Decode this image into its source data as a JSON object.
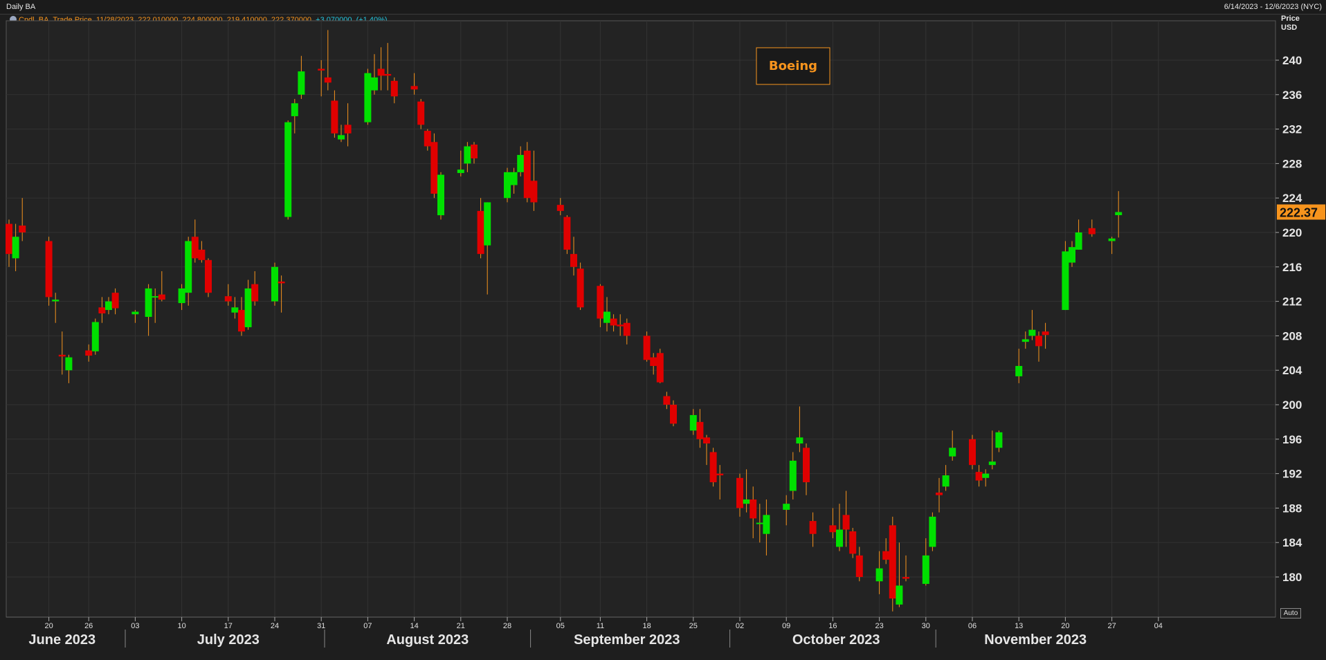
{
  "header": {
    "title": "Daily BA",
    "date_range": "6/14/2023 - 12/6/2023 (NYC)"
  },
  "legend": {
    "series": "Cndl, BA, Trade Price,",
    "date": "11/28/2023,",
    "ohlc": "222.010000, 224.800000, 219.410000, 222.370000,",
    "change": "+3.070000, (+1.40%)"
  },
  "axis_title": {
    "line1": "Price",
    "line2": "USD"
  },
  "auto_label": "Auto",
  "colors": {
    "background": "#1e1e1e",
    "up": "#00e000",
    "down": "#e00000",
    "accent": "#f7941d",
    "grid": "#333333"
  },
  "chart_data": {
    "type": "candlestick",
    "title": "Boeing",
    "last_price_label": "222.37",
    "last_price": 222.37,
    "y_ticks": [
      180,
      184,
      188,
      192,
      196,
      200,
      204,
      208,
      212,
      216,
      220,
      224,
      228,
      232,
      236,
      240
    ],
    "ylim": [
      176,
      244
    ],
    "grid": true,
    "x_day_ticks": [
      {
        "date": "2023-06-20",
        "label": "20"
      },
      {
        "date": "2023-06-26",
        "label": "26"
      },
      {
        "date": "2023-07-03",
        "label": "03"
      },
      {
        "date": "2023-07-10",
        "label": "10"
      },
      {
        "date": "2023-07-17",
        "label": "17"
      },
      {
        "date": "2023-07-24",
        "label": "24"
      },
      {
        "date": "2023-07-31",
        "label": "31"
      },
      {
        "date": "2023-08-07",
        "label": "07"
      },
      {
        "date": "2023-08-14",
        "label": "14"
      },
      {
        "date": "2023-08-21",
        "label": "21"
      },
      {
        "date": "2023-08-28",
        "label": "28"
      },
      {
        "date": "2023-09-05",
        "label": "05"
      },
      {
        "date": "2023-09-11",
        "label": "11"
      },
      {
        "date": "2023-09-18",
        "label": "18"
      },
      {
        "date": "2023-09-25",
        "label": "25"
      },
      {
        "date": "2023-10-02",
        "label": "02"
      },
      {
        "date": "2023-10-09",
        "label": "09"
      },
      {
        "date": "2023-10-16",
        "label": "16"
      },
      {
        "date": "2023-10-23",
        "label": "23"
      },
      {
        "date": "2023-10-30",
        "label": "30"
      },
      {
        "date": "2023-11-06",
        "label": "06"
      },
      {
        "date": "2023-11-13",
        "label": "13"
      },
      {
        "date": "2023-11-20",
        "label": "20"
      },
      {
        "date": "2023-11-27",
        "label": "27"
      },
      {
        "date": "2023-12-04",
        "label": "04"
      }
    ],
    "x_months": [
      {
        "label": "June 2023",
        "start": "2023-06-14",
        "end": "2023-06-30"
      },
      {
        "label": "July 2023",
        "start": "2023-07-03",
        "end": "2023-07-31"
      },
      {
        "label": "August 2023",
        "start": "2023-08-01",
        "end": "2023-08-31"
      },
      {
        "label": "September 2023",
        "start": "2023-09-01",
        "end": "2023-09-29"
      },
      {
        "label": "October 2023",
        "start": "2023-10-02",
        "end": "2023-10-31"
      },
      {
        "label": "November 2023",
        "start": "2023-11-01",
        "end": "2023-11-30"
      }
    ],
    "candles": [
      {
        "date": "2023-06-14",
        "o": 221.0,
        "h": 221.5,
        "l": 216.0,
        "c": 217.5
      },
      {
        "date": "2023-06-15",
        "o": 217.0,
        "h": 221.0,
        "l": 215.5,
        "c": 219.5
      },
      {
        "date": "2023-06-16",
        "o": 220.8,
        "h": 224.0,
        "l": 219.0,
        "c": 220.0
      },
      {
        "date": "2023-06-20",
        "o": 219.0,
        "h": 219.5,
        "l": 211.5,
        "c": 212.5
      },
      {
        "date": "2023-06-21",
        "o": 212.0,
        "h": 213.0,
        "l": 209.5,
        "c": 212.2
      },
      {
        "date": "2023-06-22",
        "o": 205.8,
        "h": 208.5,
        "l": 203.5,
        "c": 205.6
      },
      {
        "date": "2023-06-23",
        "o": 204.0,
        "h": 205.8,
        "l": 202.5,
        "c": 205.5
      },
      {
        "date": "2023-06-26",
        "o": 206.3,
        "h": 207.0,
        "l": 205.0,
        "c": 205.7
      },
      {
        "date": "2023-06-27",
        "o": 206.2,
        "h": 210.0,
        "l": 205.8,
        "c": 209.6
      },
      {
        "date": "2023-06-28",
        "o": 211.3,
        "h": 212.5,
        "l": 209.5,
        "c": 210.6
      },
      {
        "date": "2023-06-29",
        "o": 211.0,
        "h": 212.5,
        "l": 210.5,
        "c": 212.0
      },
      {
        "date": "2023-06-30",
        "o": 213.0,
        "h": 213.5,
        "l": 210.5,
        "c": 211.2
      },
      {
        "date": "2023-07-03",
        "o": 210.5,
        "h": 211.0,
        "l": 209.5,
        "c": 210.8
      },
      {
        "date": "2023-07-05",
        "o": 210.2,
        "h": 214.0,
        "l": 208.0,
        "c": 213.5
      },
      {
        "date": "2023-07-06",
        "o": 212.5,
        "h": 213.5,
        "l": 209.5,
        "c": 212.6
      },
      {
        "date": "2023-07-07",
        "o": 212.8,
        "h": 215.5,
        "l": 212.0,
        "c": 212.2
      },
      {
        "date": "2023-07-10",
        "o": 211.8,
        "h": 214.0,
        "l": 211.0,
        "c": 213.5
      },
      {
        "date": "2023-07-11",
        "o": 213.0,
        "h": 219.5,
        "l": 211.5,
        "c": 219.0
      },
      {
        "date": "2023-07-12",
        "o": 219.5,
        "h": 221.5,
        "l": 216.5,
        "c": 217.0
      },
      {
        "date": "2023-07-13",
        "o": 218.0,
        "h": 219.0,
        "l": 216.5,
        "c": 216.8
      },
      {
        "date": "2023-07-14",
        "o": 216.8,
        "h": 217.0,
        "l": 212.5,
        "c": 213.0
      },
      {
        "date": "2023-07-17",
        "o": 212.6,
        "h": 214.0,
        "l": 211.5,
        "c": 212.0
      },
      {
        "date": "2023-07-18",
        "o": 210.7,
        "h": 212.5,
        "l": 210.0,
        "c": 211.3
      },
      {
        "date": "2023-07-19",
        "o": 211.0,
        "h": 212.5,
        "l": 208.0,
        "c": 208.5
      },
      {
        "date": "2023-07-20",
        "o": 209.0,
        "h": 214.5,
        "l": 208.7,
        "c": 213.5
      },
      {
        "date": "2023-07-21",
        "o": 214.0,
        "h": 215.5,
        "l": 211.5,
        "c": 212.0
      },
      {
        "date": "2023-07-24",
        "o": 212.0,
        "h": 216.5,
        "l": 211.5,
        "c": 216.0
      },
      {
        "date": "2023-07-25",
        "o": 214.3,
        "h": 215.0,
        "l": 210.7,
        "c": 214.1
      },
      {
        "date": "2023-07-26",
        "o": 221.8,
        "h": 233.0,
        "l": 221.5,
        "c": 232.8
      },
      {
        "date": "2023-07-27",
        "o": 233.5,
        "h": 235.5,
        "l": 231.5,
        "c": 235.0
      },
      {
        "date": "2023-07-28",
        "o": 236.0,
        "h": 240.5,
        "l": 235.5,
        "c": 238.7
      },
      {
        "date": "2023-07-31",
        "o": 239.0,
        "h": 240.0,
        "l": 235.8,
        "c": 238.8
      },
      {
        "date": "2023-08-01",
        "o": 238.0,
        "h": 243.5,
        "l": 236.5,
        "c": 237.4
      },
      {
        "date": "2023-08-02",
        "o": 235.3,
        "h": 236.5,
        "l": 231.0,
        "c": 231.5
      },
      {
        "date": "2023-08-03",
        "o": 230.8,
        "h": 232.5,
        "l": 230.5,
        "c": 231.3
      },
      {
        "date": "2023-08-04",
        "o": 232.5,
        "h": 235.0,
        "l": 230.0,
        "c": 231.5
      },
      {
        "date": "2023-08-07",
        "o": 232.8,
        "h": 239.0,
        "l": 232.5,
        "c": 238.5
      },
      {
        "date": "2023-08-08",
        "o": 236.5,
        "h": 240.7,
        "l": 236.0,
        "c": 238.0
      },
      {
        "date": "2023-08-09",
        "o": 239.0,
        "h": 241.5,
        "l": 236.5,
        "c": 238.2
      },
      {
        "date": "2023-08-10",
        "o": 238.4,
        "h": 242.0,
        "l": 236.5,
        "c": 238.2
      },
      {
        "date": "2023-08-11",
        "o": 237.6,
        "h": 238.0,
        "l": 235.0,
        "c": 235.8
      },
      {
        "date": "2023-08-14",
        "o": 237.0,
        "h": 238.5,
        "l": 236.0,
        "c": 236.6
      },
      {
        "date": "2023-08-15",
        "o": 235.2,
        "h": 235.5,
        "l": 232.0,
        "c": 232.5
      },
      {
        "date": "2023-08-16",
        "o": 231.8,
        "h": 232.0,
        "l": 229.5,
        "c": 230.0
      },
      {
        "date": "2023-08-17",
        "o": 230.5,
        "h": 231.5,
        "l": 224.0,
        "c": 224.5
      },
      {
        "date": "2023-08-18",
        "o": 222.0,
        "h": 227.0,
        "l": 221.5,
        "c": 226.7
      },
      {
        "date": "2023-08-21",
        "o": 226.9,
        "h": 229.5,
        "l": 226.5,
        "c": 227.3
      },
      {
        "date": "2023-08-22",
        "o": 228.0,
        "h": 230.5,
        "l": 227.0,
        "c": 230.0
      },
      {
        "date": "2023-08-23",
        "o": 230.2,
        "h": 230.5,
        "l": 228.0,
        "c": 228.6
      },
      {
        "date": "2023-08-24",
        "o": 222.5,
        "h": 224.0,
        "l": 217.0,
        "c": 217.5
      },
      {
        "date": "2023-08-25",
        "o": 218.5,
        "h": 223.5,
        "l": 212.8,
        "c": 223.5
      },
      {
        "date": "2023-08-28",
        "o": 224.0,
        "h": 227.5,
        "l": 223.5,
        "c": 227.0
      },
      {
        "date": "2023-08-29",
        "o": 225.5,
        "h": 227.5,
        "l": 224.5,
        "c": 227.0
      },
      {
        "date": "2023-08-30",
        "o": 227.0,
        "h": 230.0,
        "l": 226.5,
        "c": 229.0
      },
      {
        "date": "2023-08-31",
        "o": 229.5,
        "h": 230.5,
        "l": 223.5,
        "c": 224.0
      },
      {
        "date": "2023-09-01",
        "o": 226.0,
        "h": 229.5,
        "l": 222.5,
        "c": 223.5
      },
      {
        "date": "2023-09-05",
        "o": 223.2,
        "h": 224.0,
        "l": 222.0,
        "c": 222.5
      },
      {
        "date": "2023-09-06",
        "o": 221.8,
        "h": 222.0,
        "l": 217.5,
        "c": 218.0
      },
      {
        "date": "2023-09-07",
        "o": 217.5,
        "h": 219.5,
        "l": 215.0,
        "c": 216.0
      },
      {
        "date": "2023-09-08",
        "o": 215.8,
        "h": 216.5,
        "l": 211.0,
        "c": 211.3
      },
      {
        "date": "2023-09-11",
        "o": 213.8,
        "h": 214.0,
        "l": 209.0,
        "c": 210.0
      },
      {
        "date": "2023-09-12",
        "o": 209.5,
        "h": 212.5,
        "l": 208.5,
        "c": 210.8
      },
      {
        "date": "2023-09-13",
        "o": 210.0,
        "h": 210.5,
        "l": 208.5,
        "c": 209.2
      },
      {
        "date": "2023-09-14",
        "o": 209.3,
        "h": 210.5,
        "l": 208.0,
        "c": 209.1
      },
      {
        "date": "2023-09-15",
        "o": 209.5,
        "h": 210.0,
        "l": 207.0,
        "c": 208.0
      },
      {
        "date": "2023-09-18",
        "o": 208.0,
        "h": 208.5,
        "l": 205.0,
        "c": 205.2
      },
      {
        "date": "2023-09-19",
        "o": 205.5,
        "h": 206.0,
        "l": 203.5,
        "c": 204.5
      },
      {
        "date": "2023-09-20",
        "o": 206.0,
        "h": 206.5,
        "l": 202.5,
        "c": 202.6
      },
      {
        "date": "2023-09-21",
        "o": 201.0,
        "h": 201.5,
        "l": 199.5,
        "c": 200.0
      },
      {
        "date": "2023-09-22",
        "o": 200.0,
        "h": 200.5,
        "l": 197.5,
        "c": 197.8
      },
      {
        "date": "2023-09-25",
        "o": 197.0,
        "h": 199.5,
        "l": 196.5,
        "c": 198.8
      },
      {
        "date": "2023-09-26",
        "o": 198.0,
        "h": 199.5,
        "l": 195.0,
        "c": 196.0
      },
      {
        "date": "2023-09-27",
        "o": 196.2,
        "h": 196.5,
        "l": 193.0,
        "c": 195.5
      },
      {
        "date": "2023-09-28",
        "o": 194.5,
        "h": 195.0,
        "l": 190.5,
        "c": 191.0
      },
      {
        "date": "2023-09-29",
        "o": 192.0,
        "h": 193.0,
        "l": 189.0,
        "c": 191.8
      },
      {
        "date": "2023-10-02",
        "o": 191.5,
        "h": 192.0,
        "l": 187.0,
        "c": 188.0
      },
      {
        "date": "2023-10-03",
        "o": 188.5,
        "h": 192.5,
        "l": 187.5,
        "c": 189.0
      },
      {
        "date": "2023-10-04",
        "o": 189.0,
        "h": 190.5,
        "l": 184.5,
        "c": 186.8
      },
      {
        "date": "2023-10-05",
        "o": 186.2,
        "h": 188.5,
        "l": 184.0,
        "c": 186.3
      },
      {
        "date": "2023-10-06",
        "o": 185.0,
        "h": 189.0,
        "l": 182.5,
        "c": 187.2
      },
      {
        "date": "2023-10-09",
        "o": 187.8,
        "h": 189.5,
        "l": 186.0,
        "c": 188.5
      },
      {
        "date": "2023-10-10",
        "o": 190.0,
        "h": 194.5,
        "l": 189.0,
        "c": 193.5
      },
      {
        "date": "2023-10-11",
        "o": 195.5,
        "h": 199.8,
        "l": 194.5,
        "c": 196.2
      },
      {
        "date": "2023-10-12",
        "o": 195.0,
        "h": 195.5,
        "l": 189.5,
        "c": 191.0
      },
      {
        "date": "2023-10-13",
        "o": 186.5,
        "h": 187.5,
        "l": 183.5,
        "c": 185.0
      },
      {
        "date": "2023-10-16",
        "o": 186.0,
        "h": 188.0,
        "l": 184.5,
        "c": 185.2
      },
      {
        "date": "2023-10-17",
        "o": 183.5,
        "h": 188.5,
        "l": 183.0,
        "c": 185.5
      },
      {
        "date": "2023-10-18",
        "o": 187.2,
        "h": 190.0,
        "l": 183.5,
        "c": 185.5
      },
      {
        "date": "2023-10-19",
        "o": 185.3,
        "h": 185.7,
        "l": 182.2,
        "c": 182.7
      },
      {
        "date": "2023-10-20",
        "o": 182.5,
        "h": 183.5,
        "l": 179.5,
        "c": 180.0
      },
      {
        "date": "2023-10-23",
        "o": 179.5,
        "h": 183.0,
        "l": 178.0,
        "c": 181.0
      },
      {
        "date": "2023-10-24",
        "o": 183.0,
        "h": 184.5,
        "l": 181.5,
        "c": 182.0
      },
      {
        "date": "2023-10-25",
        "o": 186.0,
        "h": 187.0,
        "l": 176.0,
        "c": 177.5
      },
      {
        "date": "2023-10-26",
        "o": 176.8,
        "h": 184.0,
        "l": 176.5,
        "c": 179.0
      },
      {
        "date": "2023-10-27",
        "o": 180.0,
        "h": 182.5,
        "l": 179.5,
        "c": 179.8
      },
      {
        "date": "2023-10-30",
        "o": 179.2,
        "h": 184.5,
        "l": 179.0,
        "c": 182.5
      },
      {
        "date": "2023-10-31",
        "o": 183.5,
        "h": 187.5,
        "l": 183.0,
        "c": 187.0
      },
      {
        "date": "2023-11-01",
        "o": 189.8,
        "h": 191.5,
        "l": 187.5,
        "c": 189.5
      },
      {
        "date": "2023-11-02",
        "o": 190.5,
        "h": 193.0,
        "l": 190.0,
        "c": 191.8
      },
      {
        "date": "2023-11-03",
        "o": 194.0,
        "h": 197.0,
        "l": 193.5,
        "c": 195.0
      },
      {
        "date": "2023-11-06",
        "o": 196.0,
        "h": 196.5,
        "l": 192.5,
        "c": 193.0
      },
      {
        "date": "2023-11-07",
        "o": 192.2,
        "h": 193.0,
        "l": 190.5,
        "c": 191.2
      },
      {
        "date": "2023-11-08",
        "o": 191.5,
        "h": 192.5,
        "l": 190.5,
        "c": 192.0
      },
      {
        "date": "2023-11-09",
        "o": 193.0,
        "h": 197.0,
        "l": 192.5,
        "c": 193.4
      },
      {
        "date": "2023-11-10",
        "o": 195.0,
        "h": 197.0,
        "l": 194.5,
        "c": 196.8
      },
      {
        "date": "2023-11-13",
        "o": 203.3,
        "h": 206.5,
        "l": 202.5,
        "c": 204.5
      },
      {
        "date": "2023-11-14",
        "o": 207.3,
        "h": 208.5,
        "l": 206.5,
        "c": 207.6
      },
      {
        "date": "2023-11-15",
        "o": 208.0,
        "h": 211.0,
        "l": 207.5,
        "c": 208.7
      },
      {
        "date": "2023-11-16",
        "o": 208.0,
        "h": 208.5,
        "l": 205.0,
        "c": 206.8
      },
      {
        "date": "2023-11-17",
        "o": 208.5,
        "h": 209.5,
        "l": 206.5,
        "c": 208.1
      },
      {
        "date": "2023-11-20",
        "o": 211.0,
        "h": 219.0,
        "l": 211.0,
        "c": 217.8
      },
      {
        "date": "2023-11-21",
        "o": 216.5,
        "h": 219.0,
        "l": 216.0,
        "c": 218.3
      },
      {
        "date": "2023-11-22",
        "o": 218.0,
        "h": 221.5,
        "l": 218.0,
        "c": 220.0
      },
      {
        "date": "2023-11-24",
        "o": 220.5,
        "h": 221.5,
        "l": 219.5,
        "c": 219.8
      },
      {
        "date": "2023-11-27",
        "o": 219.0,
        "h": 219.5,
        "l": 217.5,
        "c": 219.3
      },
      {
        "date": "2023-11-28",
        "o": 222.01,
        "h": 224.8,
        "l": 219.41,
        "c": 222.37
      }
    ]
  }
}
